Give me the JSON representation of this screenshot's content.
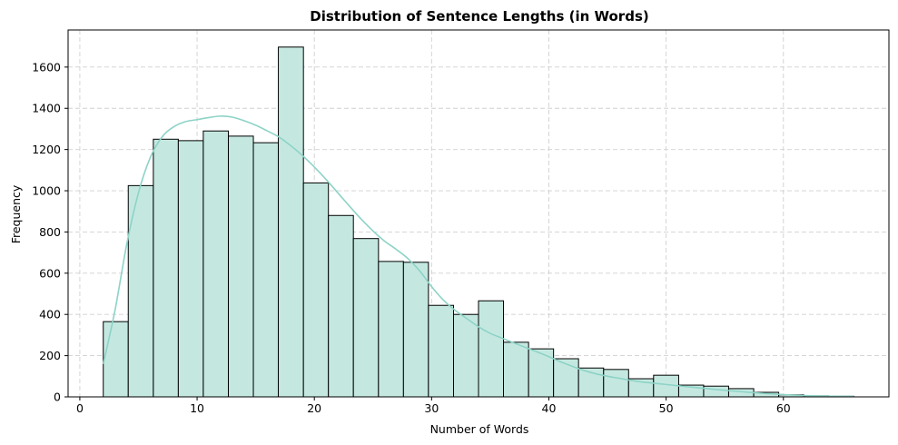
{
  "chart_data": {
    "type": "bar",
    "title": "Distribution of Sentence Lengths (in Words)",
    "xlabel": "Number of Words",
    "ylabel": "Frequency",
    "xlim": [
      -1,
      69
    ],
    "ylim": [
      0,
      1780
    ],
    "xticks": [
      0,
      10,
      20,
      30,
      40,
      50,
      60
    ],
    "yticks": [
      0,
      200,
      400,
      600,
      800,
      1000,
      1200,
      1400,
      1600
    ],
    "grid": true,
    "bar_color": "#c4e8e0",
    "bar_edge_color": "#000000",
    "kde_color": "#8dd3c7",
    "bins": [
      {
        "x0": 2.0,
        "x1": 4.13,
        "value": 365
      },
      {
        "x0": 4.13,
        "x1": 6.27,
        "value": 1025
      },
      {
        "x0": 6.27,
        "x1": 8.4,
        "value": 1250
      },
      {
        "x0": 8.4,
        "x1": 10.53,
        "value": 1243
      },
      {
        "x0": 10.53,
        "x1": 12.67,
        "value": 1290
      },
      {
        "x0": 12.67,
        "x1": 14.8,
        "value": 1265
      },
      {
        "x0": 14.8,
        "x1": 16.93,
        "value": 1233
      },
      {
        "x0": 16.93,
        "x1": 19.07,
        "value": 1697
      },
      {
        "x0": 19.07,
        "x1": 21.2,
        "value": 1038
      },
      {
        "x0": 21.2,
        "x1": 23.33,
        "value": 880
      },
      {
        "x0": 23.33,
        "x1": 25.47,
        "value": 768
      },
      {
        "x0": 25.47,
        "x1": 27.6,
        "value": 657
      },
      {
        "x0": 27.6,
        "x1": 29.73,
        "value": 653
      },
      {
        "x0": 29.73,
        "x1": 31.87,
        "value": 444
      },
      {
        "x0": 31.87,
        "x1": 34.0,
        "value": 400
      },
      {
        "x0": 34.0,
        "x1": 36.13,
        "value": 466
      },
      {
        "x0": 36.13,
        "x1": 38.27,
        "value": 265
      },
      {
        "x0": 38.27,
        "x1": 40.4,
        "value": 233
      },
      {
        "x0": 40.4,
        "x1": 42.53,
        "value": 185
      },
      {
        "x0": 42.53,
        "x1": 44.67,
        "value": 140
      },
      {
        "x0": 44.67,
        "x1": 46.8,
        "value": 133
      },
      {
        "x0": 46.8,
        "x1": 48.93,
        "value": 88
      },
      {
        "x0": 48.93,
        "x1": 51.07,
        "value": 105
      },
      {
        "x0": 51.07,
        "x1": 53.2,
        "value": 57
      },
      {
        "x0": 53.2,
        "x1": 55.33,
        "value": 52
      },
      {
        "x0": 55.33,
        "x1": 57.47,
        "value": 40
      },
      {
        "x0": 57.47,
        "x1": 59.6,
        "value": 22
      },
      {
        "x0": 59.6,
        "x1": 61.73,
        "value": 10
      },
      {
        "x0": 61.73,
        "x1": 63.87,
        "value": 5
      },
      {
        "x0": 63.87,
        "x1": 66.0,
        "value": 3
      }
    ],
    "kde": [
      [
        2,
        160
      ],
      [
        3,
        420
      ],
      [
        4,
        740
      ],
      [
        5,
        990
      ],
      [
        6,
        1160
      ],
      [
        7,
        1260
      ],
      [
        8,
        1310
      ],
      [
        9,
        1335
      ],
      [
        10,
        1345
      ],
      [
        11,
        1355
      ],
      [
        12,
        1362
      ],
      [
        13,
        1357
      ],
      [
        14,
        1340
      ],
      [
        15,
        1318
      ],
      [
        16,
        1290
      ],
      [
        17,
        1260
      ],
      [
        18,
        1218
      ],
      [
        19,
        1170
      ],
      [
        20,
        1115
      ],
      [
        21,
        1055
      ],
      [
        22,
        990
      ],
      [
        23,
        925
      ],
      [
        24,
        862
      ],
      [
        25,
        805
      ],
      [
        26,
        755
      ],
      [
        27,
        715
      ],
      [
        28,
        670
      ],
      [
        29,
        610
      ],
      [
        30,
        535
      ],
      [
        31,
        470
      ],
      [
        32,
        420
      ],
      [
        33,
        380
      ],
      [
        34,
        340
      ],
      [
        35,
        308
      ],
      [
        36,
        285
      ],
      [
        37,
        262
      ],
      [
        38,
        240
      ],
      [
        39,
        218
      ],
      [
        40,
        195
      ],
      [
        41,
        170
      ],
      [
        42,
        148
      ],
      [
        43,
        128
      ],
      [
        44,
        112
      ],
      [
        45,
        100
      ],
      [
        46,
        90
      ],
      [
        47,
        80
      ],
      [
        48,
        72
      ],
      [
        49,
        66
      ],
      [
        50,
        60
      ],
      [
        52,
        48
      ],
      [
        54,
        37
      ],
      [
        56,
        27
      ],
      [
        58,
        18
      ],
      [
        60,
        11
      ],
      [
        62,
        6
      ],
      [
        64,
        3
      ],
      [
        66,
        2
      ]
    ]
  }
}
